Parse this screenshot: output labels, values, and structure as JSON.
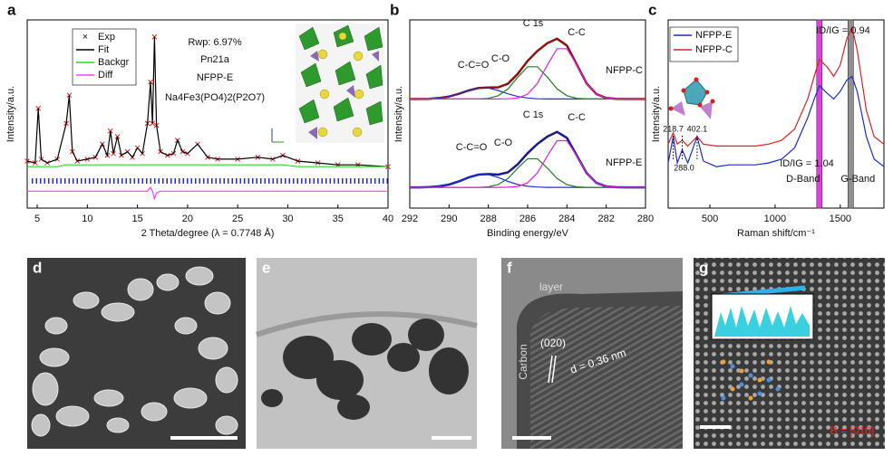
{
  "chart_data": [
    {
      "type": "line",
      "label": "a",
      "x_label": "2 Theta/degree (λ = 0.7748 Å)",
      "y_label": "Intensity/a.u.",
      "xlim": [
        4,
        40
      ],
      "ylim": [
        0,
        100
      ],
      "xticks": [
        5,
        10,
        15,
        20,
        25,
        30,
        35,
        40
      ],
      "legend": "upper left",
      "x": [
        4,
        4.8,
        5.1,
        5.4,
        6,
        7,
        7.9,
        8.2,
        8.5,
        9,
        10,
        10.8,
        11.5,
        12,
        12.3,
        12.6,
        13,
        13.4,
        14,
        14.5,
        15,
        15.5,
        16,
        16.3,
        16.5,
        16.7,
        16.9,
        17.3,
        18,
        18.6,
        19,
        19.5,
        20,
        21,
        22,
        23,
        25,
        27,
        28.5,
        29.5,
        31,
        33,
        35,
        37,
        40
      ],
      "series": [
        {
          "name": "Exp",
          "color": "#e02020",
          "marker": "x",
          "values": [
            25,
            24,
            53,
            26,
            24,
            26,
            45,
            60,
            30,
            25,
            26,
            27,
            34,
            28,
            41,
            29,
            38,
            28,
            30,
            27,
            32,
            29,
            45,
            67,
            45,
            91,
            44,
            30,
            28,
            29,
            36,
            30,
            29,
            34,
            27,
            26,
            26,
            27,
            26,
            28,
            25,
            24,
            23,
            23,
            22
          ]
        },
        {
          "name": "Fit",
          "color": "#000000",
          "values": [
            25,
            24,
            53,
            26,
            24,
            26,
            45,
            60,
            30,
            25,
            26,
            27,
            34,
            28,
            41,
            29,
            38,
            28,
            30,
            27,
            32,
            29,
            45,
            67,
            45,
            91,
            44,
            30,
            28,
            29,
            36,
            30,
            29,
            34,
            27,
            26,
            26,
            27,
            26,
            28,
            25,
            24,
            23,
            23,
            22
          ]
        },
        {
          "name": "Backgr",
          "color": "#22dd22",
          "values": [
            22,
            22,
            22,
            22,
            22,
            22,
            23,
            23,
            23,
            23,
            23,
            23,
            23,
            23,
            23,
            23,
            23,
            23,
            23,
            23,
            23,
            23,
            23,
            23,
            23,
            23,
            23,
            23,
            23,
            23,
            23,
            23,
            23,
            23,
            23,
            23,
            23,
            23,
            23,
            23,
            22,
            22,
            22,
            22,
            22
          ]
        },
        {
          "name": "Diff",
          "color": "#ff40ff",
          "values": [
            9,
            9,
            9,
            9,
            9,
            9,
            9,
            9,
            9,
            9,
            9,
            9,
            9,
            9,
            9,
            9,
            9,
            9,
            9,
            9,
            9,
            9,
            9,
            11,
            9,
            5,
            8,
            9,
            9,
            9,
            9,
            9,
            9,
            9,
            9,
            9,
            9,
            9,
            9,
            9,
            9,
            9,
            9,
            9,
            9
          ]
        }
      ],
      "annotations": [
        "Rwp: 6.97%",
        "Pn21a",
        "NFPP-E",
        "Na4Fe3(PO4)2(P2O7)"
      ]
    },
    {
      "type": "line",
      "label": "b",
      "x_label": "Binding energy/eV",
      "y_label": "Intensity/a.u.",
      "xlim": [
        292,
        280
      ],
      "ylim": [
        0,
        100
      ],
      "xticks": [
        292,
        290,
        288,
        286,
        284,
        282,
        280
      ],
      "legend": false,
      "x": [
        292,
        291.5,
        291,
        290.5,
        290,
        289.5,
        289,
        288.5,
        288,
        287.5,
        287,
        286.5,
        286,
        285.5,
        285,
        284.5,
        284,
        283.5,
        283,
        282.5,
        282,
        281.5,
        281,
        280.5,
        280
      ],
      "series": [
        {
          "name": "NFPP-C",
          "color": "#8b1010",
          "values": [
            58,
            58,
            58.1,
            58.5,
            59.3,
            60.7,
            62.5,
            63.8,
            64.1,
            64.2,
            66.1,
            71.4,
            78.2,
            83.5,
            87.6,
            90.0,
            86.4,
            76.3,
            66.3,
            60.6,
            58.5,
            58.1,
            58,
            58,
            58
          ]
        },
        {
          "name": "C-C=O",
          "color": "#2030d0",
          "values": [
            58,
            58,
            58.1,
            58.5,
            59.3,
            60.7,
            62.5,
            63.8,
            63.8,
            62.5,
            60.7,
            59.3,
            58.5,
            58.1,
            58,
            58,
            58,
            58,
            58,
            58,
            58,
            58,
            58,
            58,
            58
          ]
        },
        {
          "name": "C-O",
          "color": "#208020",
          "values": [
            58,
            58,
            58,
            58,
            58,
            58,
            58,
            58,
            58.3,
            59.7,
            63.3,
            69.6,
            75.1,
            75.1,
            69.6,
            63.3,
            59.7,
            58.3,
            58,
            58,
            58,
            58,
            58,
            58,
            58
          ]
        },
        {
          "name": "C-C",
          "color": "#e020e0",
          "values": [
            58,
            58,
            58,
            58,
            58,
            58,
            58,
            58,
            58,
            58,
            58.1,
            58.5,
            60.6,
            66.3,
            76.0,
            84.7,
            84.7,
            76.0,
            66.3,
            60.6,
            58.5,
            58.1,
            58,
            58,
            58
          ]
        },
        {
          "name": "NFPP-E",
          "color": "#1a1a8a",
          "values": [
            11,
            11,
            11.2,
            11.6,
            12.5,
            14.2,
            16.3,
            17.8,
            18.1,
            17.8,
            19.0,
            23.3,
            29.2,
            34.1,
            38.0,
            40.5,
            37.3,
            28.0,
            18.7,
            13.4,
            11.5,
            11.1,
            11,
            11,
            11
          ]
        },
        {
          "name": "C-C=O",
          "color": "#2030d0",
          "values": [
            11,
            11,
            11.2,
            11.6,
            12.5,
            14.2,
            16.3,
            17.8,
            17.8,
            16.3,
            14.2,
            12.5,
            11.6,
            11.2,
            11,
            11,
            11,
            11,
            11,
            11,
            11,
            11,
            11,
            11,
            11
          ]
        },
        {
          "name": "C-O",
          "color": "#208020",
          "values": [
            11,
            11,
            11,
            11,
            11,
            11,
            11,
            11,
            11.3,
            12.5,
            15.7,
            21.3,
            26.2,
            26.2,
            21.3,
            15.7,
            12.5,
            11.3,
            11,
            11,
            11,
            11,
            11,
            11,
            11
          ]
        },
        {
          "name": "C-C",
          "color": "#e020e0",
          "values": [
            11,
            11,
            11,
            11,
            11,
            11,
            11,
            11,
            11,
            11,
            11.1,
            11.5,
            13.4,
            18.7,
            27.7,
            35.8,
            35.8,
            27.7,
            18.7,
            13.4,
            11.5,
            11.1,
            11,
            11,
            11
          ]
        }
      ],
      "annotations": [
        "C 1s",
        "C 1s"
      ]
    },
    {
      "type": "line",
      "label": "c",
      "x_label": "Raman shift/cm⁻¹",
      "y_label": "Intensity/a.u.",
      "xlim": [
        180,
        1835
      ],
      "ylim": [
        0,
        100
      ],
      "xticks": [
        500,
        1000,
        1500
      ],
      "legend": "upper left",
      "x": [
        180,
        218.7,
        250,
        288,
        330,
        402.1,
        450,
        550,
        650,
        750,
        850,
        950,
        1050,
        1150,
        1250,
        1300,
        1340,
        1400,
        1450,
        1500,
        1550,
        1590,
        1630,
        1700,
        1760,
        1835
      ],
      "series": [
        {
          "name": "NFPP-E",
          "color": "#1a2ad0",
          "values": [
            24,
            38,
            24,
            31,
            24,
            38,
            25,
            22,
            23,
            23,
            23,
            24,
            26,
            32,
            48,
            58,
            65,
            61,
            58,
            62,
            68,
            70,
            62,
            38,
            26,
            22
          ]
        },
        {
          "name": "NFPP-C",
          "color": "#e02020",
          "values": [
            34,
            40,
            34,
            36,
            33,
            38,
            34,
            33,
            33,
            33,
            33,
            34,
            36,
            42,
            58,
            70,
            79,
            75,
            70,
            76,
            90,
            96,
            84,
            52,
            38,
            34
          ]
        }
      ],
      "bands": [
        {
          "name": "D-Band",
          "x": 1340,
          "color": "#e040e0"
        },
        {
          "name": "G-Band",
          "x": 1580,
          "color": "#909090"
        }
      ],
      "peaks": [
        218.7,
        {
          "value": 288,
          "label": "288.0"
        },
        402.1
      ],
      "annotations": [
        {
          "text": "ID/IG = 0.94",
          "color": "#e02020"
        },
        {
          "text": "ID/IG = 1.04",
          "color": "#1a2ad0"
        }
      ]
    }
  ],
  "micrographs": [
    {
      "label": "d"
    },
    {
      "label": "e"
    },
    {
      "label": "f",
      "annotations": [
        "layer",
        "Carbon",
        "(020)",
        "d = 0.36 nm"
      ]
    },
    {
      "label": "g",
      "annotations": [
        "B = [010]"
      ]
    }
  ]
}
